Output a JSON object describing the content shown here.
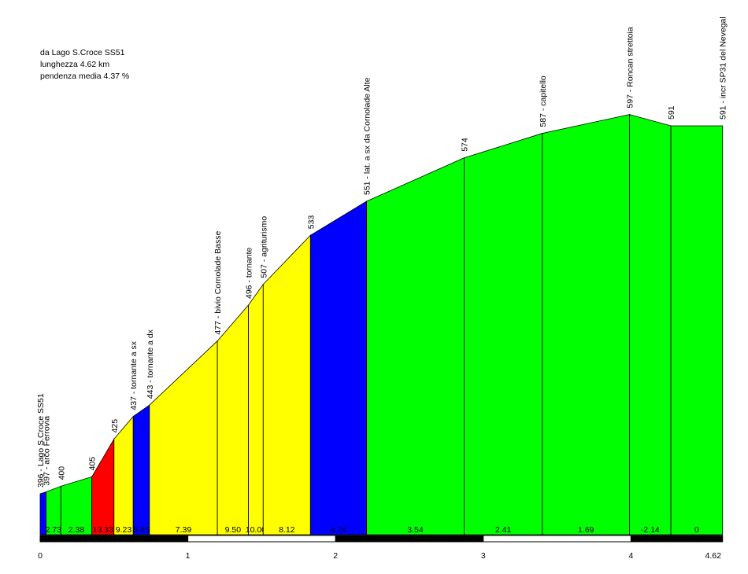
{
  "info": {
    "line1": "da Lago S.Croce SS51",
    "line2": "lunghezza 4.62 km",
    "line3": "pendenza media 4.37 %"
  },
  "chart_data": {
    "type": "area",
    "title": "",
    "xlabel": "",
    "ylabel": "",
    "xlim": [
      0,
      4.62
    ],
    "x_ticks": [
      "0",
      "1",
      "2",
      "3",
      "4",
      "4.62"
    ],
    "points": [
      {
        "x": 0.0,
        "y": 396,
        "label": "396 - Lago S.Croce SS51"
      },
      {
        "x": 0.04,
        "y": 397,
        "label": "397 - arco Ferrovia"
      },
      {
        "x": 0.14,
        "y": 400,
        "label": "400"
      },
      {
        "x": 0.35,
        "y": 405,
        "label": "405"
      },
      {
        "x": 0.5,
        "y": 425,
        "label": "425"
      },
      {
        "x": 0.63,
        "y": 437,
        "label": "437 - tornante a sx"
      },
      {
        "x": 0.74,
        "y": 443,
        "label": "443 - tornante a dx"
      },
      {
        "x": 1.2,
        "y": 477,
        "label": "477 - bivio Cornolade Basse"
      },
      {
        "x": 1.41,
        "y": 496,
        "label": "496 - tornante"
      },
      {
        "x": 1.51,
        "y": 507,
        "label": "507 - agriturismo"
      },
      {
        "x": 1.83,
        "y": 533,
        "label": "533"
      },
      {
        "x": 2.21,
        "y": 551,
        "label": "551 - lat. a sx da Cornolade Alte"
      },
      {
        "x": 2.87,
        "y": 574,
        "label": "574"
      },
      {
        "x": 3.4,
        "y": 587,
        "label": "587 - capitello"
      },
      {
        "x": 3.99,
        "y": 597,
        "label": "597 - Roncan strettoia"
      },
      {
        "x": 4.27,
        "y": 591,
        "label": "591"
      },
      {
        "x": 4.62,
        "y": 591,
        "label": "591 - incr SP31 del Nevegal"
      }
    ],
    "segments": [
      {
        "gradient": "",
        "color": "#0000ff"
      },
      {
        "gradient": "2.73",
        "color": "#00ff00"
      },
      {
        "gradient": "2.38",
        "color": "#00ff00"
      },
      {
        "gradient": "13.33",
        "color": "#ff0000"
      },
      {
        "gradient": "9.23",
        "color": "#ffff00"
      },
      {
        "gradient": "5.45",
        "color": "#0000ff"
      },
      {
        "gradient": "7.39",
        "color": "#ffff00"
      },
      {
        "gradient": "9.50",
        "color": "#ffff00"
      },
      {
        "gradient": "10.00",
        "color": "#ffff00"
      },
      {
        "gradient": "8.12",
        "color": "#ffff00"
      },
      {
        "gradient": "4.74",
        "color": "#0000ff"
      },
      {
        "gradient": "3.54",
        "color": "#00ff00"
      },
      {
        "gradient": "2.41",
        "color": "#00ff00"
      },
      {
        "gradient": "1.69",
        "color": "#00ff00"
      },
      {
        "gradient": "-2.14",
        "color": "#00ff00"
      },
      {
        "gradient": "0",
        "color": "#00ff00"
      }
    ]
  }
}
